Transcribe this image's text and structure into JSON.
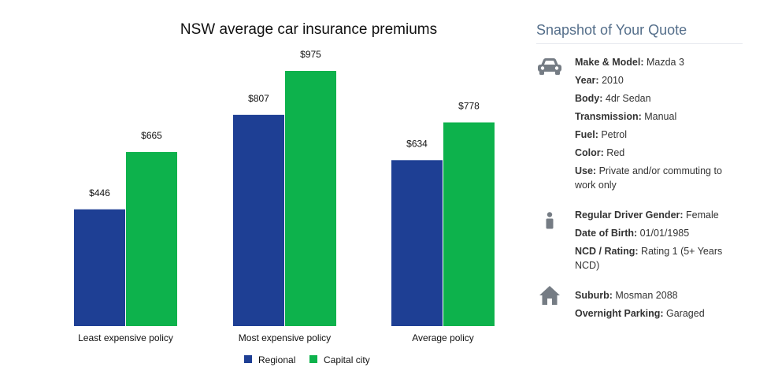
{
  "chart_data": {
    "type": "bar",
    "title": "NSW average car insurance premiums",
    "categories": [
      "Least expensive policy",
      "Most expensive policy",
      "Average policy"
    ],
    "series": [
      {
        "name": "Regional",
        "color": "#1e3f94",
        "values": [
          446,
          807,
          634
        ],
        "labels": [
          "$446",
          "$807",
          "$634"
        ]
      },
      {
        "name": "Capital city",
        "color": "#0db24c",
        "values": [
          665,
          975,
          778
        ],
        "labels": [
          "$665",
          "$975",
          "$778"
        ]
      }
    ],
    "ylim": [
      0,
      1000
    ],
    "xlabel": "",
    "ylabel": "",
    "grid": false,
    "legend_position": "bottom"
  },
  "snapshot": {
    "title": "Snapshot of Your Quote",
    "icons": {
      "car": "car-icon",
      "driver": "person-icon",
      "address": "house-icon"
    },
    "icon_color": "#757c84",
    "car": [
      {
        "label": "Make & Model:",
        "value": "Mazda 3"
      },
      {
        "label": "Year:",
        "value": "2010"
      },
      {
        "label": "Body:",
        "value": "4dr Sedan"
      },
      {
        "label": "Transmission:",
        "value": "Manual"
      },
      {
        "label": "Fuel:",
        "value": "Petrol"
      },
      {
        "label": "Color:",
        "value": "Red"
      },
      {
        "label": "Use:",
        "value": "Private and/or commuting to work only"
      }
    ],
    "driver": [
      {
        "label": "Regular Driver Gender:",
        "value": "Female"
      },
      {
        "label": "Date of Birth:",
        "value": "01/01/1985"
      },
      {
        "label": "NCD / Rating:",
        "value": "Rating 1 (5+ Years NCD)"
      }
    ],
    "address": [
      {
        "label": "Suburb:",
        "value": "Mosman 2088"
      },
      {
        "label": "Overnight Parking:",
        "value": "Garaged"
      }
    ]
  }
}
